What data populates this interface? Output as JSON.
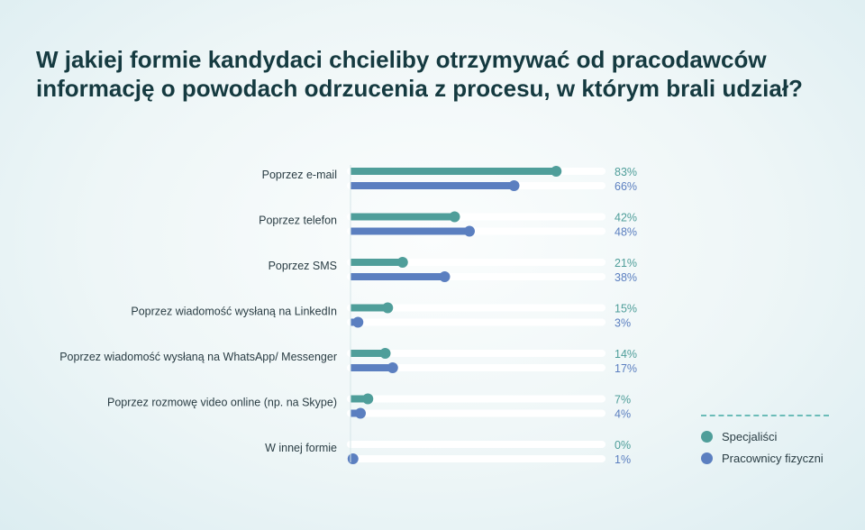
{
  "title_lines": [
    "W jakiej formie kandydaci chcieliby otrzymywać od pracodawców",
    "informację o powodach odrzucenia z procesu, w którym brali udział?"
  ],
  "colors": {
    "specjalisci": "#4f9e9a",
    "pracownicy": "#5b7fc0",
    "track": "#ffffff",
    "category_text": "#2a3d44"
  },
  "legend": {
    "items": [
      {
        "label": "Specjaliści",
        "color": "#4f9e9a"
      },
      {
        "label": "Pracownicy fizyczni",
        "color": "#5b7fc0"
      }
    ]
  },
  "chart_data": {
    "type": "bar",
    "orientation": "horizontal",
    "categories": [
      "Poprzez e-mail",
      "Poprzez telefon",
      "Poprzez SMS",
      "Poprzez wiadomość wysłaną na LinkedIn",
      "Poprzez wiadomość wysłaną na WhatsApp/ Messenger",
      "Poprzez rozmowę video online (np. na Skype)",
      "W innej formie"
    ],
    "series": [
      {
        "name": "Specjaliści",
        "values": [
          83,
          42,
          21,
          15,
          14,
          7,
          0
        ],
        "labels": [
          "83%",
          "42%",
          "21%",
          "15%",
          "14%",
          "7%",
          "0%"
        ]
      },
      {
        "name": "Pracownicy fizyczni",
        "values": [
          66,
          48,
          38,
          3,
          17,
          4,
          1
        ],
        "labels": [
          "66%",
          "48%",
          "38%",
          "3%",
          "17%",
          "4%",
          "1%"
        ]
      }
    ],
    "xlim": [
      0,
      100
    ],
    "unit": "%",
    "legend_position": "bottom-right"
  }
}
